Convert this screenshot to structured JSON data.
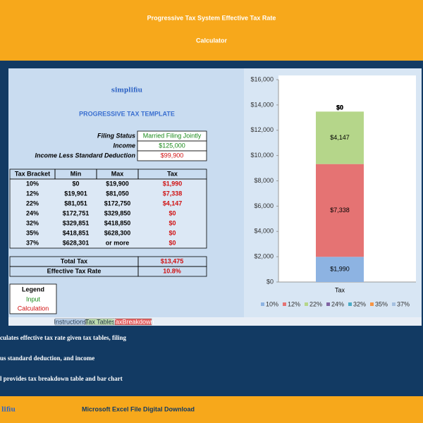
{
  "header": {
    "title_lines": [
      "Progressive Tax System Effective Tax Rate",
      "Calculator"
    ]
  },
  "sheet": {
    "logo": "simplifiu",
    "subtitle": "PROGRESSIVE TAX TEMPLATE",
    "inputs": [
      {
        "label": "Filing Status",
        "value": "Married Filing Jointly"
      },
      {
        "label": "Income",
        "value": "$125,000"
      },
      {
        "label": "Income Less Standard Deduction",
        "value": "$99,900"
      }
    ],
    "table": {
      "columns": [
        "Tax Bracket",
        "Min",
        "Max",
        "Tax"
      ],
      "rows": [
        [
          "10%",
          "$0",
          "$19,900",
          "$1,990"
        ],
        [
          "12%",
          "$19,901",
          "$81,050",
          "$7,338"
        ],
        [
          "22%",
          "$81,051",
          "$172,750",
          "$4,147"
        ],
        [
          "24%",
          "$172,751",
          "$329,850",
          "$0"
        ],
        [
          "32%",
          "$329,851",
          "$418,850",
          "$0"
        ],
        [
          "35%",
          "$418,851",
          "$628,300",
          "$0"
        ],
        [
          "37%",
          "$628,301",
          "or more",
          "$0"
        ]
      ]
    },
    "totals": [
      {
        "label": "Total Tax",
        "value": "$13,475"
      },
      {
        "label": "Effective Tax Rate",
        "value": "10.8%"
      }
    ],
    "legend": {
      "title": "Legend",
      "items": [
        "Input",
        "Calculation"
      ]
    },
    "tabs": [
      "Instructions",
      "Tax Tables",
      "TaxBreakdown"
    ]
  },
  "chart": {
    "type": "bar",
    "stacked": true,
    "categories": [
      "Tax"
    ],
    "ylim": [
      0,
      16000
    ],
    "yticks": [
      {
        "value": 0,
        "label": "$0"
      },
      {
        "value": 2000,
        "label": "$2,000"
      },
      {
        "value": 4000,
        "label": "$4,000"
      },
      {
        "value": 6000,
        "label": "$6,000"
      },
      {
        "value": 8000,
        "label": "$8,000"
      },
      {
        "value": 10000,
        "label": "$10,000"
      },
      {
        "value": 12000,
        "label": "$12,000"
      },
      {
        "value": 14000,
        "label": "$14,000"
      },
      {
        "value": 16000,
        "label": "$16,000"
      }
    ],
    "legend": "bottom",
    "series": [
      {
        "name": "10%",
        "color": "#8db3e2",
        "values": [
          1990
        ],
        "value_labels": [
          "$1,990"
        ]
      },
      {
        "name": "12%",
        "color": "#e57373",
        "values": [
          7338
        ],
        "value_labels": [
          "$7,338"
        ]
      },
      {
        "name": "22%",
        "color": "#b5d68a",
        "values": [
          4147
        ],
        "value_labels": [
          "$4,147"
        ]
      },
      {
        "name": "24%",
        "color": "#8064a2",
        "values": [
          0
        ],
        "value_labels": [
          "$0"
        ]
      },
      {
        "name": "32%",
        "color": "#4bacc6",
        "values": [
          0
        ],
        "value_labels": [
          "$0"
        ]
      },
      {
        "name": "35%",
        "color": "#f79646",
        "values": [
          0
        ],
        "value_labels": [
          "$0"
        ]
      },
      {
        "name": "37%",
        "color": "#a5c0e0",
        "values": [
          0
        ],
        "value_labels": [
          "$0"
        ]
      }
    ]
  },
  "description": [
    "culates effective tax rate given tax tables, filing",
    "us standard deduction, and income",
    "l provides tax breakdown table and bar chart"
  ],
  "footer": {
    "logo": "lifiu",
    "text": "Microsoft Excel File Digital Download"
  }
}
